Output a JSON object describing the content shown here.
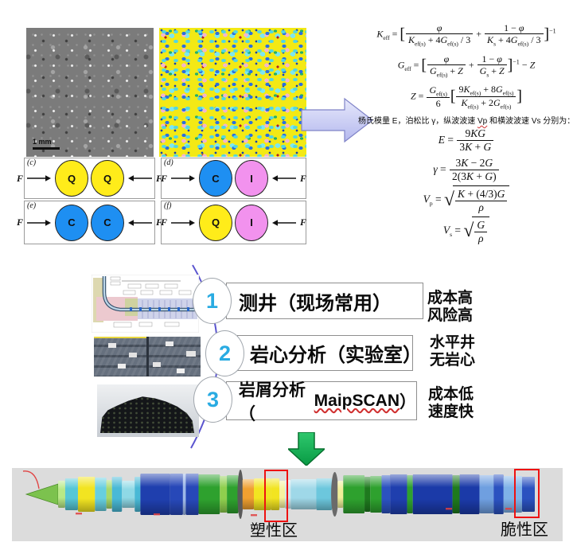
{
  "top": {
    "sem": {
      "scale_label": "1 mm"
    },
    "panels": [
      {
        "label": "(c)",
        "force": "F",
        "grains": [
          {
            "letter": "Q",
            "color": "#ffec1a"
          },
          {
            "letter": "Q",
            "color": "#ffec1a"
          }
        ]
      },
      {
        "label": "(d)",
        "force": "F",
        "grains": [
          {
            "letter": "C",
            "color": "#1e8ff2"
          },
          {
            "letter": "I",
            "color": "#f292ee"
          }
        ]
      },
      {
        "label": "(e)",
        "force": "F",
        "grains": [
          {
            "letter": "C",
            "color": "#1e8ff2"
          },
          {
            "letter": "C",
            "color": "#1e8ff2"
          }
        ]
      },
      {
        "label": "(f)",
        "force": "F",
        "grains": [
          {
            "letter": "Q",
            "color": "#ffec1a"
          },
          {
            "letter": "I",
            "color": "#f292ee"
          }
        ]
      }
    ],
    "intro": {
      "pre": "杨氏模量 E，泊松比 γ，纵波波速 ",
      "vp": "Vp",
      "mid": " 和横波波速 ",
      "vs": "Vs",
      "post": " 分别为："
    },
    "formulas": [
      {
        "id": "keff",
        "size": "sm",
        "tokens": [
          {
            "t": "i",
            "v": "K"
          },
          {
            "t": "sub",
            "v": "eff"
          },
          {
            "t": "r",
            "v": " = "
          },
          {
            "t": "b",
            "v": "["
          },
          {
            "t": "frac",
            "n": [
              {
                "t": "i",
                "v": "φ"
              }
            ],
            "d": [
              {
                "t": "i",
                "v": "K"
              },
              {
                "t": "sub",
                "v": "ef(s)"
              },
              {
                "t": "r",
                "v": " + 4"
              },
              {
                "t": "i",
                "v": "G"
              },
              {
                "t": "sub",
                "v": "ef(s)"
              },
              {
                "t": "r",
                "v": " / 3"
              }
            ]
          },
          {
            "t": "r",
            "v": " + "
          },
          {
            "t": "frac",
            "n": [
              {
                "t": "r",
                "v": "1 − "
              },
              {
                "t": "i",
                "v": "φ"
              }
            ],
            "d": [
              {
                "t": "i",
                "v": "K"
              },
              {
                "t": "sub",
                "v": "s"
              },
              {
                "t": "r",
                "v": " + 4"
              },
              {
                "t": "i",
                "v": "G"
              },
              {
                "t": "sub",
                "v": "ef(s)"
              },
              {
                "t": "r",
                "v": " / 3"
              }
            ]
          },
          {
            "t": "b",
            "v": "]"
          },
          {
            "t": "sup",
            "v": "−1"
          }
        ]
      },
      {
        "id": "geff",
        "size": "sm",
        "tokens": [
          {
            "t": "i",
            "v": "G"
          },
          {
            "t": "sub",
            "v": "eff"
          },
          {
            "t": "r",
            "v": " = "
          },
          {
            "t": "b",
            "v": "["
          },
          {
            "t": "frac",
            "n": [
              {
                "t": "i",
                "v": "φ"
              }
            ],
            "d": [
              {
                "t": "i",
                "v": "G"
              },
              {
                "t": "sub",
                "v": "ef(s)"
              },
              {
                "t": "r",
                "v": " + "
              },
              {
                "t": "i",
                "v": "Z"
              }
            ]
          },
          {
            "t": "r",
            "v": " + "
          },
          {
            "t": "frac",
            "n": [
              {
                "t": "r",
                "v": "1 − "
              },
              {
                "t": "i",
                "v": "φ"
              }
            ],
            "d": [
              {
                "t": "i",
                "v": "G"
              },
              {
                "t": "sub",
                "v": "s"
              },
              {
                "t": "r",
                "v": " + "
              },
              {
                "t": "i",
                "v": "Z"
              }
            ]
          },
          {
            "t": "b",
            "v": "]"
          },
          {
            "t": "sup",
            "v": "−1"
          },
          {
            "t": "r",
            "v": " − "
          },
          {
            "t": "i",
            "v": "Z"
          }
        ]
      },
      {
        "id": "z",
        "size": "sm",
        "tokens": [
          {
            "t": "i",
            "v": "Z"
          },
          {
            "t": "r",
            "v": " = "
          },
          {
            "t": "frac",
            "n": [
              {
                "t": "i",
                "v": "G"
              },
              {
                "t": "sub",
                "v": "ef(s)"
              }
            ],
            "d": [
              {
                "t": "r",
                "v": "6"
              }
            ]
          },
          {
            "t": "b",
            "v": "["
          },
          {
            "t": "frac",
            "n": [
              {
                "t": "r",
                "v": "9"
              },
              {
                "t": "i",
                "v": "K"
              },
              {
                "t": "sub",
                "v": "ef(s)"
              },
              {
                "t": "r",
                "v": " + 8"
              },
              {
                "t": "i",
                "v": "G"
              },
              {
                "t": "sub",
                "v": "ef(s)"
              }
            ],
            "d": [
              {
                "t": "i",
                "v": "K"
              },
              {
                "t": "sub",
                "v": "ef(s)"
              },
              {
                "t": "r",
                "v": " + 2"
              },
              {
                "t": "i",
                "v": "G"
              },
              {
                "t": "sub",
                "v": "ef(s)"
              }
            ]
          },
          {
            "t": "b",
            "v": "]"
          }
        ]
      },
      {
        "id": "E",
        "size": "lg",
        "tokens": [
          {
            "t": "i",
            "v": "E"
          },
          {
            "t": "r",
            "v": " = "
          },
          {
            "t": "frac",
            "n": [
              {
                "t": "r",
                "v": "9"
              },
              {
                "t": "i",
                "v": "KG"
              }
            ],
            "d": [
              {
                "t": "r",
                "v": "3"
              },
              {
                "t": "i",
                "v": "K"
              },
              {
                "t": "r",
                "v": " + "
              },
              {
                "t": "i",
                "v": "G"
              }
            ]
          }
        ]
      },
      {
        "id": "gamma",
        "size": "lg",
        "tokens": [
          {
            "t": "i",
            "v": "γ"
          },
          {
            "t": "r",
            "v": " = "
          },
          {
            "t": "frac",
            "n": [
              {
                "t": "r",
                "v": "3"
              },
              {
                "t": "i",
                "v": "K"
              },
              {
                "t": "r",
                "v": " − 2"
              },
              {
                "t": "i",
                "v": "G"
              }
            ],
            "d": [
              {
                "t": "r",
                "v": "2(3"
              },
              {
                "t": "i",
                "v": "K"
              },
              {
                "t": "r",
                "v": " + "
              },
              {
                "t": "i",
                "v": "G"
              },
              {
                "t": "r",
                "v": ")"
              }
            ]
          }
        ]
      },
      {
        "id": "vp",
        "size": "lg",
        "tokens": [
          {
            "t": "i",
            "v": "V"
          },
          {
            "t": "sub",
            "v": "p"
          },
          {
            "t": "r",
            "v": " = "
          },
          {
            "t": "sqrt",
            "c": [
              {
                "t": "frac",
                "n": [
                  {
                    "t": "i",
                    "v": "K"
                  },
                  {
                    "t": "r",
                    "v": " + (4/3)"
                  },
                  {
                    "t": "i",
                    "v": "G"
                  }
                ],
                "d": [
                  {
                    "t": "i",
                    "v": "ρ"
                  }
                ]
              }
            ]
          }
        ]
      },
      {
        "id": "vs",
        "size": "lg",
        "tokens": [
          {
            "t": "i",
            "v": "V"
          },
          {
            "t": "sub",
            "v": "s"
          },
          {
            "t": "r",
            "v": " = "
          },
          {
            "t": "sqrt",
            "c": [
              {
                "t": "frac",
                "n": [
                  {
                    "t": "i",
                    "v": "G"
                  }
                ],
                "d": [
                  {
                    "t": "i",
                    "v": "ρ"
                  }
                ]
              }
            ]
          }
        ]
      }
    ]
  },
  "workflow": {
    "number_color": "#29abe2",
    "items": [
      {
        "num": "1",
        "title_pre": "测井（现场常用）",
        "brand": "",
        "title_post": "",
        "notes": [
          "成本高",
          "风险高"
        ]
      },
      {
        "num": "2",
        "title_pre": "岩心分析（实验室）",
        "brand": "",
        "title_post": "",
        "notes": [
          "水平井",
          "无岩心"
        ]
      },
      {
        "num": "3",
        "title_pre": "岩屑分析（",
        "brand": "MaipSCAN",
        "title_post": "）",
        "notes": [
          "成本低",
          "速度快"
        ]
      }
    ]
  },
  "bottom": {
    "labels": {
      "plastic": "塑性区",
      "brittle": "脆性区"
    },
    "cylinder": {
      "cone_color": "#7cc24e",
      "segments": [
        {
          "w": 10,
          "h": 34,
          "c": "#b8e986"
        },
        {
          "w": 18,
          "h": 40,
          "c": "#56c7d6"
        },
        {
          "w": 24,
          "h": 44,
          "c": "#f2e421"
        },
        {
          "w": 16,
          "h": 42,
          "c": "#67cfe0"
        },
        {
          "w": 8,
          "h": 36,
          "c": "#a8d96b"
        },
        {
          "w": 14,
          "h": 44,
          "c": "#49b9d6"
        },
        {
          "w": 18,
          "h": 34,
          "c": "#8fd9e6"
        },
        {
          "w": 8,
          "h": 44,
          "c": "#49b9d6"
        },
        {
          "w": 42,
          "h": 52,
          "c": "#1f3fae"
        },
        {
          "w": 18,
          "h": 52,
          "c": "#2748b8"
        },
        {
          "w": 4,
          "h": 52,
          "c": "#9db8e8"
        },
        {
          "w": 18,
          "h": 52,
          "c": "#2748b8"
        },
        {
          "w": 30,
          "h": 50,
          "c": "#2ea12e"
        },
        {
          "w": 10,
          "h": 46,
          "c": "#8fcf4e"
        },
        {
          "w": 16,
          "h": 48,
          "c": "#2ea12e"
        },
        {
          "w": 6,
          "h": 56,
          "c": "#5a5a5a",
          "disc": true
        },
        {
          "w": 16,
          "h": 38,
          "c": "#f0a030"
        },
        {
          "w": 24,
          "h": 40,
          "c": "#f2e421"
        },
        {
          "w": 12,
          "h": 40,
          "c": "#f2e421"
        },
        {
          "w": 8,
          "h": 34,
          "c": "#f7f3a0"
        },
        {
          "w": 8,
          "h": 36,
          "c": "#cde8f0"
        },
        {
          "w": 36,
          "h": 38,
          "c": "#9fd8e8"
        },
        {
          "w": 22,
          "h": 40,
          "c": "#6cc7dd"
        },
        {
          "w": 8,
          "h": 50,
          "c": "#6a6a6a",
          "disc": true
        },
        {
          "w": 8,
          "h": 34,
          "c": "#f0ef9a"
        },
        {
          "w": 30,
          "h": 48,
          "c": "#2ea12e"
        },
        {
          "w": 8,
          "h": 44,
          "c": "#1e7a1e"
        },
        {
          "w": 16,
          "h": 46,
          "c": "#2ea12e"
        },
        {
          "w": 12,
          "h": 48,
          "c": "#2b52c0"
        },
        {
          "w": 24,
          "h": 50,
          "c": "#1f3fae"
        },
        {
          "w": 8,
          "h": 48,
          "c": "#2ea12e"
        },
        {
          "w": 56,
          "h": 50,
          "c": "#1b3aa8"
        },
        {
          "w": 10,
          "h": 48,
          "c": "#1e7a1e"
        },
        {
          "w": 28,
          "h": 50,
          "c": "#1b3aa8"
        },
        {
          "w": 20,
          "h": 48,
          "c": "#6f9fe0"
        },
        {
          "w": 14,
          "h": 50,
          "c": "#2b52c0"
        },
        {
          "w": 26,
          "h": 46,
          "c": "#7fb2e8"
        },
        {
          "w": 18,
          "h": 44,
          "c": "#2b52c0"
        }
      ]
    }
  }
}
